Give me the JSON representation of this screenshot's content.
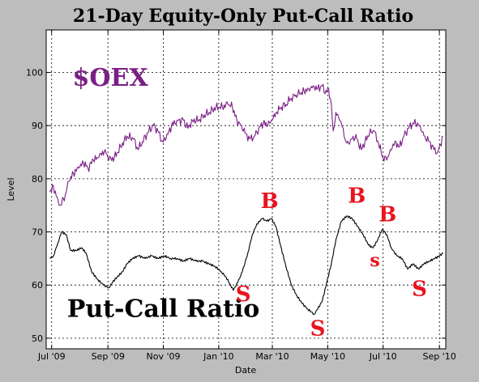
{
  "chart_data": {
    "type": "line",
    "title": "21-Day Equity-Only Put-Call Ratio",
    "xlabel": "Date",
    "ylabel": "Level",
    "ylim": [
      48,
      108
    ],
    "yticks": [
      50,
      60,
      70,
      80,
      90,
      100
    ],
    "xlim": [
      "2009-06-25",
      "2010-09-08"
    ],
    "xticks": [
      {
        "label": "Jul '09",
        "date": "2009-07-01"
      },
      {
        "label": "Sep '09",
        "date": "2009-09-01"
      },
      {
        "label": "Nov '09",
        "date": "2009-11-01"
      },
      {
        "label": "Jan '10",
        "date": "2010-01-01"
      },
      {
        "label": "Mar '10",
        "date": "2010-03-01"
      },
      {
        "label": "May '10",
        "date": "2010-05-01"
      },
      {
        "label": "Jul '10",
        "date": "2010-07-01"
      },
      {
        "label": "Sep '10",
        "date": "2010-09-01"
      }
    ],
    "grid": true,
    "series": [
      {
        "name": "$OEX",
        "color": "#7b1f86",
        "points": [
          [
            "2009-06-29",
            77.5
          ],
          [
            "2009-07-03",
            78.5
          ],
          [
            "2009-07-08",
            76.0
          ],
          [
            "2009-07-11",
            75.0
          ],
          [
            "2009-07-16",
            77.0
          ],
          [
            "2009-07-20",
            79.5
          ],
          [
            "2009-07-25",
            81.0
          ],
          [
            "2009-07-31",
            82.0
          ],
          [
            "2009-08-05",
            83.0
          ],
          [
            "2009-08-10",
            82.0
          ],
          [
            "2009-08-16",
            83.5
          ],
          [
            "2009-08-22",
            84.0
          ],
          [
            "2009-08-29",
            85.5
          ],
          [
            "2009-09-02",
            83.5
          ],
          [
            "2009-09-08",
            84.0
          ],
          [
            "2009-09-15",
            86.0
          ],
          [
            "2009-09-22",
            88.0
          ],
          [
            "2009-09-29",
            87.5
          ],
          [
            "2009-10-04",
            85.5
          ],
          [
            "2009-10-09",
            87.0
          ],
          [
            "2009-10-16",
            89.0
          ],
          [
            "2009-10-21",
            90.0
          ],
          [
            "2009-10-26",
            89.0
          ],
          [
            "2009-10-31",
            87.0
          ],
          [
            "2009-11-04",
            87.5
          ],
          [
            "2009-11-10",
            90.0
          ],
          [
            "2009-11-16",
            91.0
          ],
          [
            "2009-11-23",
            91.0
          ],
          [
            "2009-11-28",
            89.5
          ],
          [
            "2009-12-03",
            91.0
          ],
          [
            "2009-12-10",
            91.0
          ],
          [
            "2009-12-16",
            92.0
          ],
          [
            "2009-12-22",
            92.5
          ],
          [
            "2009-12-29",
            93.5
          ],
          [
            "2010-01-05",
            93.5
          ],
          [
            "2010-01-11",
            94.0
          ],
          [
            "2010-01-16",
            93.5
          ],
          [
            "2010-01-21",
            91.0
          ],
          [
            "2010-01-26",
            90.0
          ],
          [
            "2010-01-31",
            88.5
          ],
          [
            "2010-02-04",
            87.5
          ],
          [
            "2010-02-09",
            88.0
          ],
          [
            "2010-02-14",
            89.5
          ],
          [
            "2010-02-19",
            90.5
          ],
          [
            "2010-02-24",
            90.0
          ],
          [
            "2010-03-01",
            91.0
          ],
          [
            "2010-03-06",
            92.5
          ],
          [
            "2010-03-11",
            93.5
          ],
          [
            "2010-03-16",
            94.0
          ],
          [
            "2010-03-21",
            95.0
          ],
          [
            "2010-03-26",
            95.5
          ],
          [
            "2010-03-31",
            96.0
          ],
          [
            "2010-04-05",
            96.5
          ],
          [
            "2010-04-10",
            97.0
          ],
          [
            "2010-04-15",
            97.5
          ],
          [
            "2010-04-20",
            97.0
          ],
          [
            "2010-04-25",
            97.5
          ],
          [
            "2010-04-28",
            96.0
          ],
          [
            "2010-05-02",
            97.0
          ],
          [
            "2010-05-05",
            94.0
          ],
          [
            "2010-05-07",
            89.0
          ],
          [
            "2010-05-10",
            92.5
          ],
          [
            "2010-05-14",
            91.0
          ],
          [
            "2010-05-18",
            89.5
          ],
          [
            "2010-05-21",
            87.0
          ],
          [
            "2010-05-25",
            86.5
          ],
          [
            "2010-05-29",
            88.0
          ],
          [
            "2010-06-02",
            87.5
          ],
          [
            "2010-06-07",
            85.5
          ],
          [
            "2010-06-11",
            87.0
          ],
          [
            "2010-06-16",
            88.5
          ],
          [
            "2010-06-21",
            89.0
          ],
          [
            "2010-06-26",
            86.5
          ],
          [
            "2010-07-01",
            84.0
          ],
          [
            "2010-07-05",
            83.5
          ],
          [
            "2010-07-09",
            85.5
          ],
          [
            "2010-07-14",
            87.0
          ],
          [
            "2010-07-19",
            86.0
          ],
          [
            "2010-07-24",
            88.0
          ],
          [
            "2010-07-29",
            89.5
          ],
          [
            "2010-08-03",
            90.5
          ],
          [
            "2010-08-08",
            90.5
          ],
          [
            "2010-08-12",
            89.0
          ],
          [
            "2010-08-16",
            88.0
          ],
          [
            "2010-08-21",
            87.0
          ],
          [
            "2010-08-26",
            85.5
          ],
          [
            "2010-08-30",
            85.0
          ],
          [
            "2010-09-02",
            86.5
          ],
          [
            "2010-09-05",
            88.0
          ]
        ]
      },
      {
        "name": "Put-Call Ratio",
        "color": "#000000",
        "points": [
          [
            "2009-06-29",
            65.0
          ],
          [
            "2009-07-03",
            65.5
          ],
          [
            "2009-07-08",
            68.0
          ],
          [
            "2009-07-12",
            70.0
          ],
          [
            "2009-07-17",
            69.5
          ],
          [
            "2009-07-22",
            66.5
          ],
          [
            "2009-07-28",
            66.5
          ],
          [
            "2009-08-03",
            67.0
          ],
          [
            "2009-08-08",
            66.0
          ],
          [
            "2009-08-14",
            62.5
          ],
          [
            "2009-08-21",
            61.0
          ],
          [
            "2009-08-27",
            60.0
          ],
          [
            "2009-09-02",
            59.5
          ],
          [
            "2009-09-06",
            60.5
          ],
          [
            "2009-09-11",
            61.5
          ],
          [
            "2009-09-17",
            62.5
          ],
          [
            "2009-09-22",
            64.0
          ],
          [
            "2009-09-28",
            65.0
          ],
          [
            "2009-10-05",
            65.5
          ],
          [
            "2009-10-12",
            65.0
          ],
          [
            "2009-10-19",
            65.5
          ],
          [
            "2009-10-26",
            65.0
          ],
          [
            "2009-11-02",
            65.5
          ],
          [
            "2009-11-09",
            65.0
          ],
          [
            "2009-11-16",
            65.0
          ],
          [
            "2009-11-23",
            64.5
          ],
          [
            "2009-11-30",
            65.0
          ],
          [
            "2009-12-07",
            64.5
          ],
          [
            "2009-12-14",
            64.5
          ],
          [
            "2009-12-21",
            64.0
          ],
          [
            "2009-12-28",
            63.5
          ],
          [
            "2010-01-04",
            62.5
          ],
          [
            "2010-01-09",
            61.5
          ],
          [
            "2010-01-14",
            60.0
          ],
          [
            "2010-01-17",
            59.0
          ],
          [
            "2010-01-22",
            60.5
          ],
          [
            "2010-01-27",
            62.5
          ],
          [
            "2010-02-02",
            66.0
          ],
          [
            "2010-02-07",
            69.5
          ],
          [
            "2010-02-12",
            71.5
          ],
          [
            "2010-02-18",
            72.5
          ],
          [
            "2010-02-23",
            72.0
          ],
          [
            "2010-02-28",
            72.5
          ],
          [
            "2010-03-05",
            71.0
          ],
          [
            "2010-03-10",
            67.5
          ],
          [
            "2010-03-16",
            63.5
          ],
          [
            "2010-03-22",
            60.0
          ],
          [
            "2010-03-28",
            58.0
          ],
          [
            "2010-04-03",
            56.5
          ],
          [
            "2010-04-09",
            55.5
          ],
          [
            "2010-04-16",
            54.5
          ],
          [
            "2010-04-20",
            55.5
          ],
          [
            "2010-04-25",
            57.0
          ],
          [
            "2010-04-30",
            60.5
          ],
          [
            "2010-05-05",
            64.0
          ],
          [
            "2010-05-10",
            68.5
          ],
          [
            "2010-05-16",
            72.0
          ],
          [
            "2010-05-22",
            73.0
          ],
          [
            "2010-05-28",
            72.5
          ],
          [
            "2010-06-03",
            71.0
          ],
          [
            "2010-06-09",
            69.5
          ],
          [
            "2010-06-15",
            67.5
          ],
          [
            "2010-06-20",
            67.0
          ],
          [
            "2010-06-25",
            68.5
          ],
          [
            "2010-06-30",
            70.5
          ],
          [
            "2010-07-05",
            69.5
          ],
          [
            "2010-07-10",
            67.0
          ],
          [
            "2010-07-16",
            65.5
          ],
          [
            "2010-07-22",
            65.0
          ],
          [
            "2010-07-28",
            63.0
          ],
          [
            "2010-08-03",
            64.0
          ],
          [
            "2010-08-09",
            63.0
          ],
          [
            "2010-08-15",
            64.0
          ],
          [
            "2010-08-21",
            64.5
          ],
          [
            "2010-08-27",
            65.0
          ],
          [
            "2010-09-01",
            65.5
          ],
          [
            "2010-09-05",
            66.0
          ]
        ]
      }
    ],
    "annotations": [
      {
        "text": "$OEX",
        "date": "2009-07-24",
        "y": 97.5,
        "size": 30,
        "color": "#7b1f86"
      },
      {
        "text": "Put-Call Ratio",
        "date": "2009-07-18",
        "y": 54.0,
        "size": 30,
        "color": "#000000"
      },
      {
        "text": "S",
        "date": "2010-01-28",
        "y": 57.0,
        "size": 26,
        "color": "#e8141e"
      },
      {
        "text": "B",
        "date": "2010-02-26",
        "y": 74.5,
        "size": 26,
        "color": "#e8141e"
      },
      {
        "text": "S",
        "date": "2010-04-20",
        "y": 50.5,
        "size": 26,
        "color": "#e8141e"
      },
      {
        "text": "B",
        "date": "2010-06-02",
        "y": 75.5,
        "size": 26,
        "color": "#e8141e"
      },
      {
        "text": "B",
        "date": "2010-07-06",
        "y": 72.0,
        "size": 26,
        "color": "#e8141e"
      },
      {
        "text": "s",
        "date": "2010-06-22",
        "y": 63.5,
        "size": 22,
        "color": "#e8141e"
      },
      {
        "text": "S",
        "date": "2010-08-10",
        "y": 58.0,
        "size": 26,
        "color": "#e8141e"
      }
    ]
  }
}
